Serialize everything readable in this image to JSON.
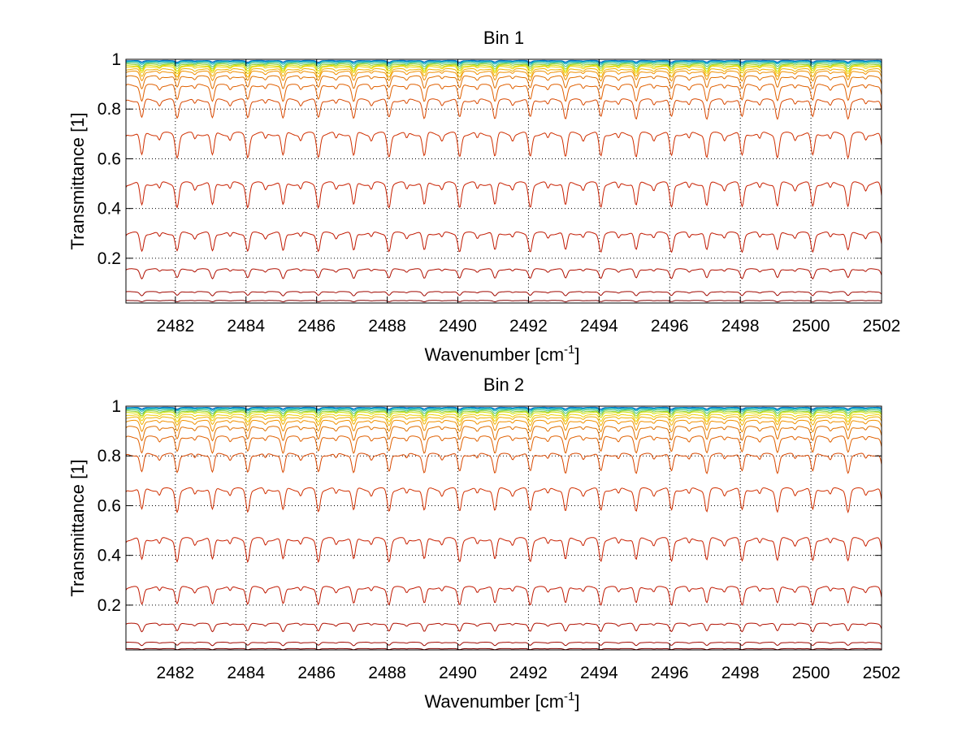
{
  "chart_data": [
    {
      "type": "line",
      "title": "Bin 1",
      "xlabel": "Wavenumber [cm",
      "xlabel_superscript": "-1",
      "xlabel_close": "]",
      "ylabel": "Transmittance [1]",
      "xlim": [
        2480.6,
        2502
      ],
      "ylim": [
        0.02,
        1
      ],
      "xticks": [
        2482,
        2484,
        2486,
        2488,
        2490,
        2492,
        2494,
        2496,
        2498,
        2500,
        2502
      ],
      "xtick_labels": [
        "2482",
        "2484",
        "2486",
        "2488",
        "2490",
        "2492",
        "2494",
        "2496",
        "2498",
        "2500",
        "2502"
      ],
      "yticks": [
        0.2,
        0.4,
        0.6,
        0.8,
        1
      ],
      "ytick_labels": [
        "0.2",
        "0.4",
        "0.6",
        "0.8",
        "1"
      ],
      "grid": true,
      "grid_style": "dotted",
      "series_note": "family of transmittance spectra with periodic absorption lines (~1 per cm-1)",
      "line_spacing_cm": 1.0,
      "series": [
        {
          "baseline": 0.995,
          "depth": 0.006,
          "color": "#0060c0"
        },
        {
          "baseline": 0.993,
          "depth": 0.008,
          "color": "#0090d0"
        },
        {
          "baseline": 0.99,
          "depth": 0.01,
          "color": "#00b0b0"
        },
        {
          "baseline": 0.985,
          "depth": 0.014,
          "color": "#40c070"
        },
        {
          "baseline": 0.98,
          "depth": 0.018,
          "color": "#90d030"
        },
        {
          "baseline": 0.975,
          "depth": 0.022,
          "color": "#d0e000"
        },
        {
          "baseline": 0.97,
          "depth": 0.026,
          "color": "#f0d000"
        },
        {
          "baseline": 0.96,
          "depth": 0.03,
          "color": "#f0b000"
        },
        {
          "baseline": 0.95,
          "depth": 0.035,
          "color": "#f09000"
        },
        {
          "baseline": 0.93,
          "depth": 0.045,
          "color": "#e07000"
        },
        {
          "baseline": 0.895,
          "depth": 0.06,
          "color": "#e06000"
        },
        {
          "baseline": 0.835,
          "depth": 0.07,
          "color": "#d84800"
        },
        {
          "baseline": 0.7,
          "depth": 0.09,
          "color": "#d03000"
        },
        {
          "baseline": 0.5,
          "depth": 0.09,
          "color": "#c82000"
        },
        {
          "baseline": 0.3,
          "depth": 0.07,
          "color": "#c01800"
        },
        {
          "baseline": 0.155,
          "depth": 0.035,
          "color": "#b01000"
        },
        {
          "baseline": 0.065,
          "depth": 0.015,
          "color": "#a00800"
        },
        {
          "baseline": 0.03,
          "depth": 0.005,
          "color": "#800000"
        }
      ]
    },
    {
      "type": "line",
      "title": "Bin 2",
      "xlabel": "Wavenumber [cm",
      "xlabel_superscript": "-1",
      "xlabel_close": "]",
      "ylabel": "Transmittance [1]",
      "xlim": [
        2480.6,
        2502
      ],
      "ylim": [
        0.02,
        1
      ],
      "xticks": [
        2482,
        2484,
        2486,
        2488,
        2490,
        2492,
        2494,
        2496,
        2498,
        2500,
        2502
      ],
      "xtick_labels": [
        "2482",
        "2484",
        "2486",
        "2488",
        "2490",
        "2492",
        "2494",
        "2496",
        "2498",
        "2500",
        "2502"
      ],
      "yticks": [
        0.2,
        0.4,
        0.6,
        0.8,
        1
      ],
      "ytick_labels": [
        "0.2",
        "0.4",
        "0.6",
        "0.8",
        "1"
      ],
      "grid": true,
      "grid_style": "dotted",
      "series_note": "family of transmittance spectra with periodic absorption lines (~1 per cm-1)",
      "line_spacing_cm": 1.0,
      "series": [
        {
          "baseline": 0.995,
          "depth": 0.006,
          "color": "#0060c0"
        },
        {
          "baseline": 0.993,
          "depth": 0.008,
          "color": "#0090d0"
        },
        {
          "baseline": 0.99,
          "depth": 0.01,
          "color": "#00b0b0"
        },
        {
          "baseline": 0.985,
          "depth": 0.014,
          "color": "#40c070"
        },
        {
          "baseline": 0.98,
          "depth": 0.018,
          "color": "#90d030"
        },
        {
          "baseline": 0.975,
          "depth": 0.022,
          "color": "#d0e000"
        },
        {
          "baseline": 0.965,
          "depth": 0.026,
          "color": "#f0d000"
        },
        {
          "baseline": 0.955,
          "depth": 0.03,
          "color": "#f0b000"
        },
        {
          "baseline": 0.94,
          "depth": 0.04,
          "color": "#f09000"
        },
        {
          "baseline": 0.915,
          "depth": 0.05,
          "color": "#e07000"
        },
        {
          "baseline": 0.875,
          "depth": 0.06,
          "color": "#e06000"
        },
        {
          "baseline": 0.805,
          "depth": 0.07,
          "color": "#d84800"
        },
        {
          "baseline": 0.665,
          "depth": 0.085,
          "color": "#d03000"
        },
        {
          "baseline": 0.465,
          "depth": 0.085,
          "color": "#c82000"
        },
        {
          "baseline": 0.27,
          "depth": 0.065,
          "color": "#c01800"
        },
        {
          "baseline": 0.125,
          "depth": 0.03,
          "color": "#b01000"
        },
        {
          "baseline": 0.05,
          "depth": 0.012,
          "color": "#a00800"
        },
        {
          "baseline": 0.025,
          "depth": 0.004,
          "color": "#800000"
        }
      ]
    }
  ]
}
